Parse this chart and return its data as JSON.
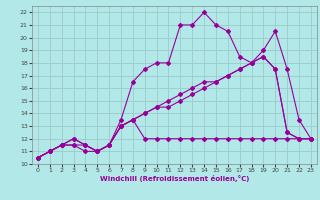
{
  "xlabel": "Windchill (Refroidissement éolien,°C)",
  "bg_color": "#b2e8e8",
  "grid_color": "#9ecece",
  "line_color": "#990099",
  "xlim": [
    -0.5,
    23.5
  ],
  "ylim": [
    10,
    22.5
  ],
  "xticks": [
    0,
    1,
    2,
    3,
    4,
    5,
    6,
    7,
    8,
    9,
    10,
    11,
    12,
    13,
    14,
    15,
    16,
    17,
    18,
    19,
    20,
    21,
    22,
    23
  ],
  "yticks": [
    10,
    11,
    12,
    13,
    14,
    15,
    16,
    17,
    18,
    19,
    20,
    21,
    22
  ],
  "line1_x": [
    0,
    1,
    2,
    3,
    4,
    5,
    6,
    7,
    8,
    9,
    10,
    11,
    12,
    13,
    14,
    15,
    16,
    17,
    18,
    19,
    20,
    21,
    22,
    23
  ],
  "line1_y": [
    10.5,
    11.0,
    11.5,
    11.5,
    11.0,
    11.0,
    11.5,
    13.5,
    16.5,
    17.5,
    18.0,
    18.0,
    21.0,
    21.0,
    22.0,
    21.0,
    20.5,
    18.5,
    18.0,
    19.0,
    20.5,
    17.5,
    13.5,
    12.0
  ],
  "line2_x": [
    0,
    1,
    2,
    3,
    4,
    5,
    6,
    7,
    8,
    9,
    10,
    11,
    12,
    13,
    14,
    15,
    16,
    17,
    18,
    19,
    20,
    21,
    22,
    23
  ],
  "line2_y": [
    10.5,
    11.0,
    11.5,
    12.0,
    11.5,
    11.0,
    11.5,
    13.0,
    13.5,
    14.0,
    14.5,
    15.0,
    15.5,
    16.0,
    16.5,
    16.5,
    17.0,
    17.5,
    18.0,
    18.5,
    17.5,
    12.5,
    12.0,
    12.0
  ],
  "line3_x": [
    0,
    1,
    2,
    3,
    4,
    5,
    6,
    7,
    8,
    9,
    10,
    11,
    12,
    13,
    14,
    15,
    16,
    17,
    18,
    19,
    20,
    21,
    22,
    23
  ],
  "line3_y": [
    10.5,
    11.0,
    11.5,
    12.0,
    11.5,
    11.0,
    11.5,
    13.0,
    13.5,
    14.0,
    14.5,
    14.5,
    15.0,
    15.5,
    16.0,
    16.5,
    17.0,
    17.5,
    18.0,
    18.5,
    17.5,
    12.5,
    12.0,
    12.0
  ],
  "line4_x": [
    0,
    1,
    2,
    3,
    4,
    5,
    6,
    7,
    8,
    9,
    10,
    11,
    12,
    13,
    14,
    15,
    16,
    17,
    18,
    19,
    20,
    21,
    22,
    23
  ],
  "line4_y": [
    10.5,
    11.0,
    11.5,
    11.5,
    11.5,
    11.0,
    11.5,
    13.0,
    13.5,
    12.0,
    12.0,
    12.0,
    12.0,
    12.0,
    12.0,
    12.0,
    12.0,
    12.0,
    12.0,
    12.0,
    12.0,
    12.0,
    12.0,
    12.0
  ]
}
